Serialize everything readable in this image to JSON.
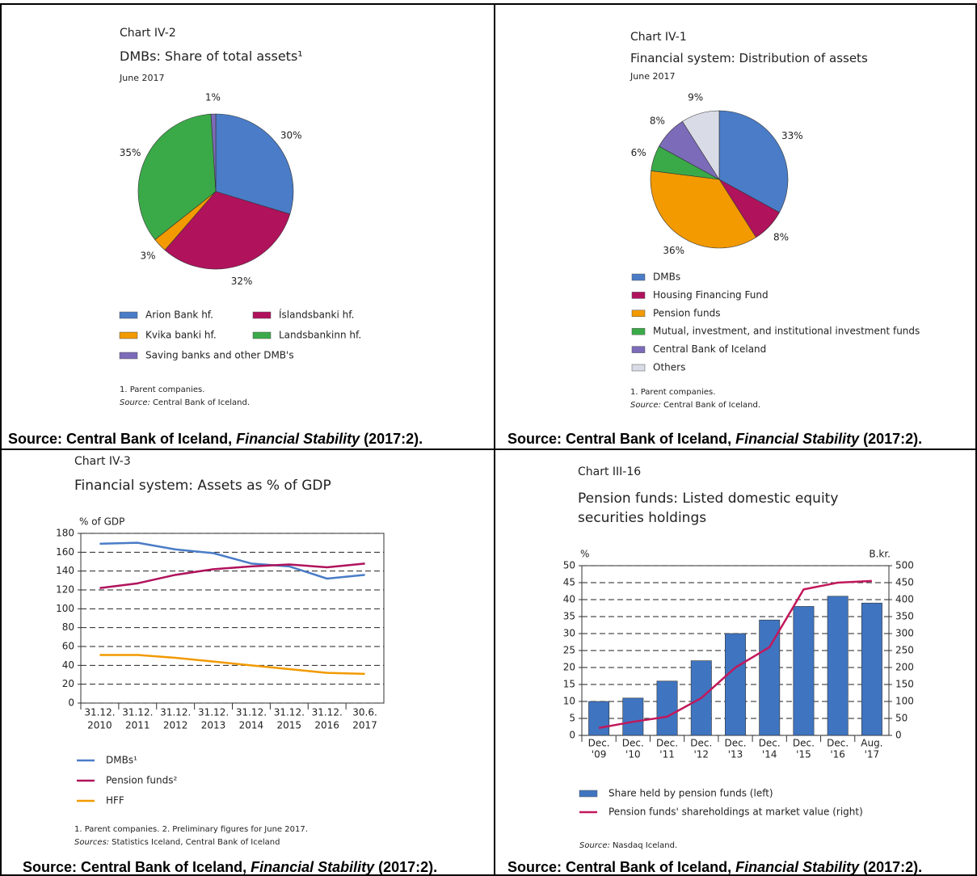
{
  "chart_data": [
    {
      "type": "pie",
      "label": "Chart IV-2",
      "title": "DMBs: Share of total assets¹",
      "subtitle": "June 2017",
      "categories": [
        "Arion Bank hf.",
        "Íslandsbanki hf.",
        "Kvika banki hf.",
        "Landsbankinn hf.",
        "Saving banks and other DMB's"
      ],
      "values": [
        30,
        32,
        3,
        35,
        1
      ],
      "value_labels": [
        "30%",
        "32%",
        "3%",
        "35%",
        "1%"
      ],
      "colors": [
        "#4a7cc7",
        "#b0125c",
        "#f29a00",
        "#3aaa48",
        "#7b6bb8"
      ],
      "footnotes": [
        "1. Parent companies."
      ],
      "source_note": {
        "label": "Source:",
        "text": "Central Bank of Iceland."
      },
      "source": {
        "prefix": "Source: Central Bank of Iceland, ",
        "italic": "Financial Stability",
        "suffix": " (2017:2)."
      }
    },
    {
      "type": "pie",
      "label": "Chart IV-1",
      "title": "Financial system: Distribution of assets",
      "subtitle": "June 2017",
      "categories": [
        "DMBs",
        "Housing Financing Fund",
        "Pension funds",
        "Mutual, investment, and institutional investment funds",
        "Central Bank of Iceland",
        "Others"
      ],
      "values": [
        33,
        8,
        36,
        6,
        8,
        9
      ],
      "value_labels": [
        "33%",
        "8%",
        "36%",
        "6%",
        "8%",
        "9%"
      ],
      "colors": [
        "#4a7cc7",
        "#b0125c",
        "#f29a00",
        "#3aaa48",
        "#7b6bb8",
        "#d9dce6"
      ],
      "footnotes": [
        "1. Parent companies."
      ],
      "source_note": {
        "label": "Source:",
        "text": "Central Bank of Iceland."
      },
      "source": {
        "prefix": "Source: Central Bank of Iceland, ",
        "italic": "Financial Stability",
        "suffix": " (2017:2)."
      }
    },
    {
      "type": "line",
      "label": "Chart IV-3",
      "title": "Financial system: Assets as % of GDP",
      "y_label": "% of GDP",
      "categories": [
        [
          "31.12.",
          "2010"
        ],
        [
          "31.12.",
          "2011"
        ],
        [
          "31.12.",
          "2012"
        ],
        [
          "31.12.",
          "2013"
        ],
        [
          "31.12.",
          "2014"
        ],
        [
          "31.12.",
          "2015"
        ],
        [
          "31.12.",
          "2016"
        ],
        [
          "30.6.",
          "2017"
        ]
      ],
      "series": [
        {
          "name": "DMBs¹",
          "color": "#4a7cc7",
          "values": [
            169,
            170,
            163,
            159,
            148,
            145,
            132,
            136
          ]
        },
        {
          "name": "Pension funds²",
          "color": "#b0125c",
          "values": [
            122,
            127,
            136,
            142,
            145,
            147,
            144,
            148
          ]
        },
        {
          "name": "HFF",
          "color": "#f29a00",
          "values": [
            51,
            51,
            48,
            44,
            40,
            36,
            32,
            31
          ]
        }
      ],
      "ylim": [
        0,
        180
      ],
      "yticks": [
        0,
        20,
        40,
        60,
        80,
        100,
        120,
        140,
        160,
        180
      ],
      "grid": true,
      "footnotes": [
        "1. Parent companies. 2. Preliminary figures for June 2017."
      ],
      "source_note": {
        "label": "Sources:",
        "text": "Statistics Iceland, Central Bank of Iceland"
      },
      "source": {
        "prefix": "Source: Central Bank of Iceland, ",
        "italic": "Financial Stability",
        "suffix": " (2017:2)."
      }
    },
    {
      "type": "bar",
      "label": "Chart III-16",
      "title": "Pension funds: Listed domestic equity securities holdings",
      "y_label": "%",
      "y2_label": "B.kr.",
      "categories": [
        [
          "Dec.",
          "'09"
        ],
        [
          "Dec.",
          "'10"
        ],
        [
          "Dec.",
          "'11"
        ],
        [
          "Dec.",
          "'12"
        ],
        [
          "Dec.",
          "'13"
        ],
        [
          "Dec.",
          "'14"
        ],
        [
          "Dec.",
          "'15"
        ],
        [
          "Dec.",
          "'16"
        ],
        [
          "Aug.",
          "'17"
        ]
      ],
      "series": [
        {
          "name": "Share held by pension funds (left)",
          "color": "#3f74c0",
          "values": [
            10,
            11,
            16,
            22,
            30,
            34,
            38,
            41,
            39
          ]
        },
        {
          "name": "Pension funds' shareholdings at market value (right)",
          "color": "#c2185b",
          "axis": "y2",
          "values": [
            22,
            40,
            55,
            110,
            200,
            260,
            430,
            450,
            455
          ]
        }
      ],
      "ylim": [
        0,
        50
      ],
      "yticks": [
        0,
        5,
        10,
        15,
        20,
        25,
        30,
        35,
        40,
        45,
        50
      ],
      "y2lim": [
        0,
        500
      ],
      "y2ticks": [
        0,
        50,
        100,
        150,
        200,
        250,
        300,
        350,
        400,
        450,
        500
      ],
      "grid": true,
      "footnotes": [],
      "source_note": {
        "label": "Source:",
        "text": "Nasdaq Iceland."
      },
      "source": {
        "prefix": "Source: Central Bank of Iceland, ",
        "italic": "Financial Stability",
        "suffix": " (2017:2)."
      }
    }
  ]
}
